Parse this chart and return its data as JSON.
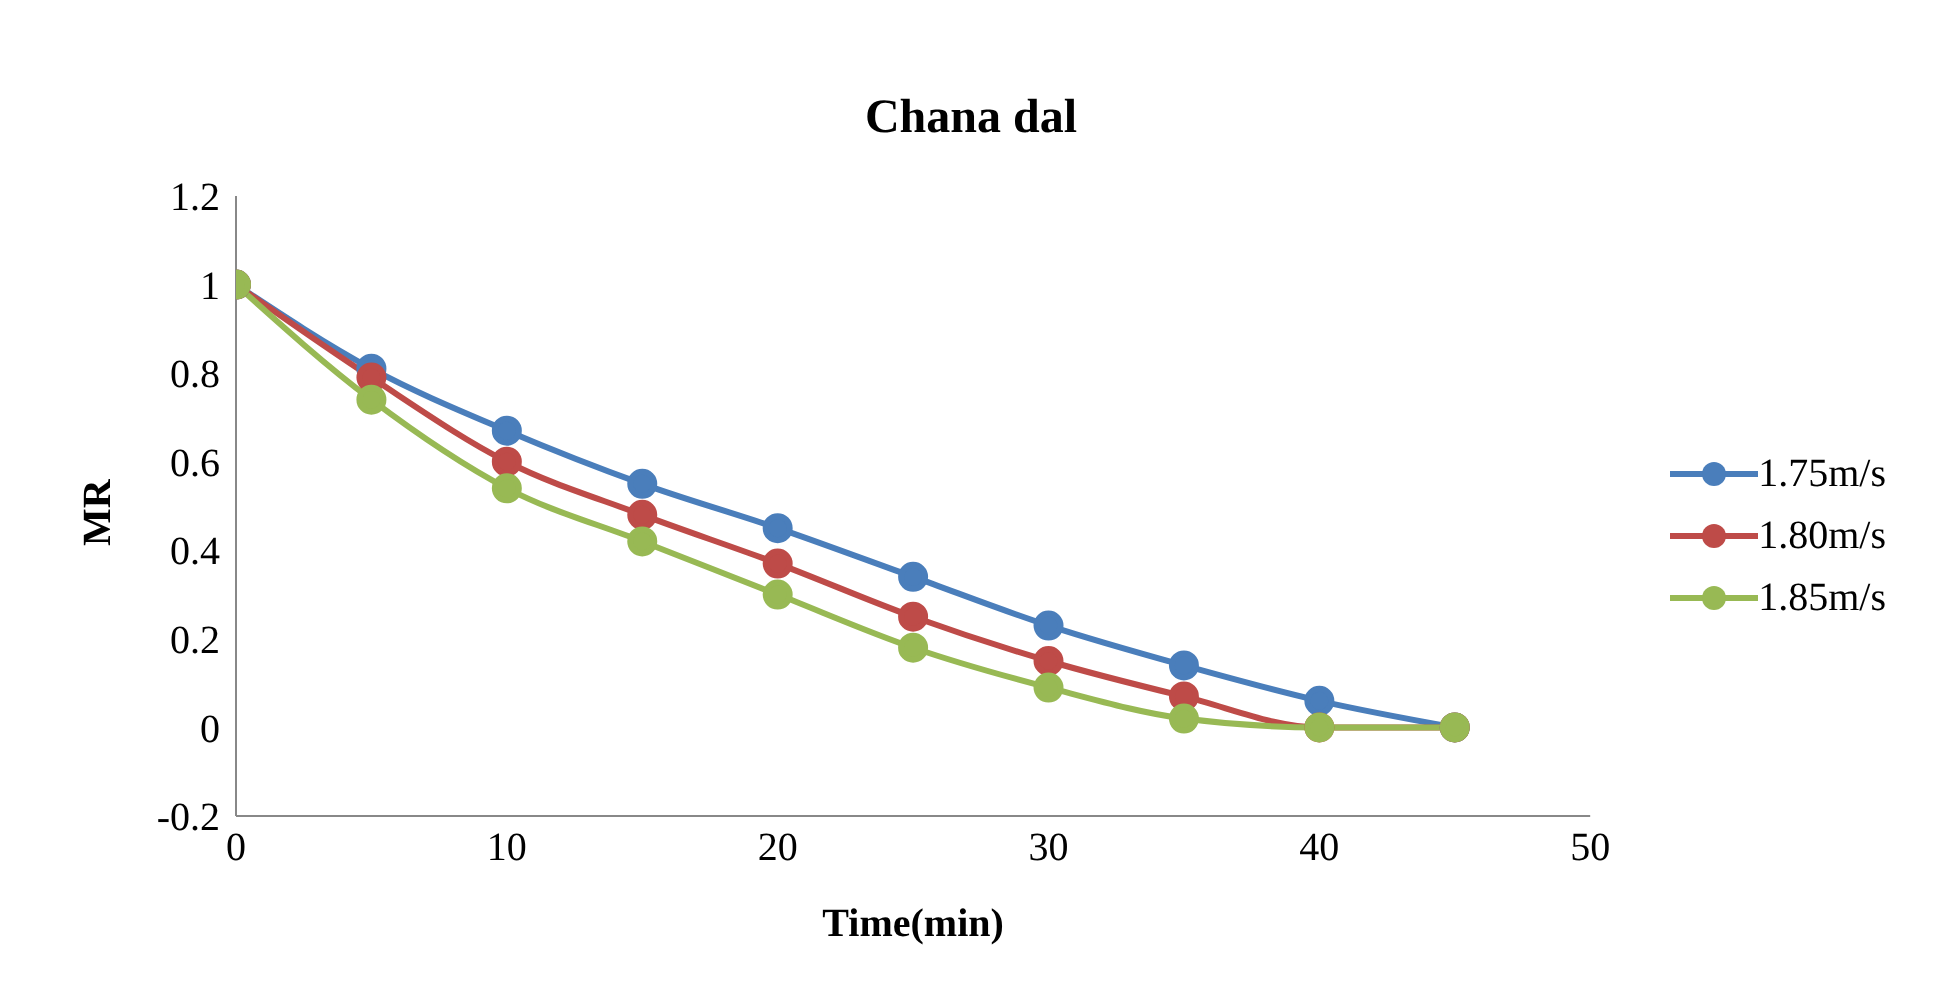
{
  "chart_data": {
    "type": "line",
    "title": "Chana dal",
    "xlabel": "Time(min)",
    "ylabel": "MR",
    "x": [
      0,
      5,
      10,
      15,
      20,
      25,
      30,
      35,
      40,
      45
    ],
    "series": [
      {
        "name": "1.75m/s",
        "color": "#4a7ebb",
        "values": [
          1,
          0.81,
          0.67,
          0.55,
          0.45,
          0.34,
          0.23,
          0.14,
          0.06,
          0
        ]
      },
      {
        "name": "1.80m/s",
        "color": "#be4b48",
        "values": [
          1,
          0.79,
          0.6,
          0.48,
          0.37,
          0.25,
          0.15,
          0.07,
          0,
          0
        ]
      },
      {
        "name": "1.85m/s",
        "color": "#98b954",
        "values": [
          1,
          0.74,
          0.54,
          0.42,
          0.3,
          0.18,
          0.09,
          0.02,
          0,
          0
        ]
      }
    ],
    "xlim": [
      0,
      50
    ],
    "xticks": [
      0,
      10,
      20,
      30,
      40,
      50
    ],
    "ylim": [
      -0.2,
      1.2
    ],
    "yticks": [
      -0.2,
      0,
      0.2,
      0.4,
      0.6,
      0.8,
      1,
      1.2
    ],
    "grid": false,
    "legend": "right",
    "marker": "circle",
    "line_style": "solid"
  }
}
